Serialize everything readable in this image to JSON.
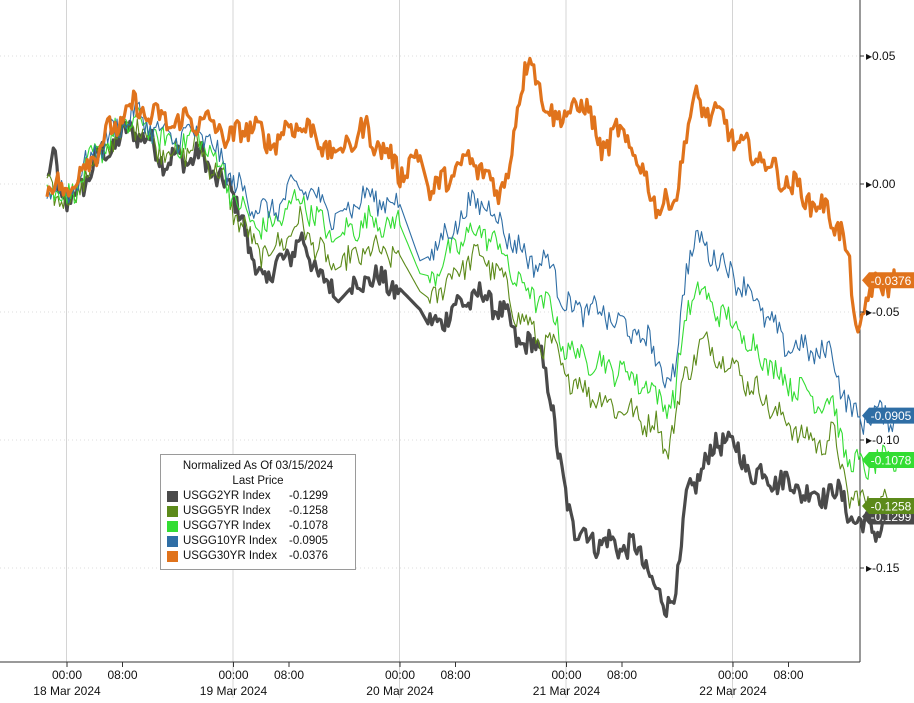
{
  "chart_data": {
    "type": "line",
    "legend": {
      "title": "Normalized As Of 03/15/2024",
      "subtitle": "Last Price",
      "placement": "bottom-left"
    },
    "x_axis": {
      "time_ticks": [
        "00:00",
        "08:00",
        "00:00",
        "08:00",
        "00:00",
        "08:00",
        "00:00",
        "08:00",
        "00:00",
        "08:00"
      ],
      "day_labels": [
        "18 Mar 2024",
        "19 Mar 2024",
        "20 Mar 2024",
        "21 Mar 2024",
        "22 Mar 2024"
      ]
    },
    "y_axis": {
      "ticks": [
        {
          "label": "0.05",
          "value": 0.05
        },
        {
          "label": "0.00",
          "value": 0.0
        },
        {
          "label": "-0.05",
          "value": -0.05
        },
        {
          "label": "-0.10",
          "value": -0.1
        },
        {
          "label": "-0.15",
          "value": -0.15
        }
      ],
      "ylim": [
        -0.19,
        0.073
      ],
      "side": "right"
    },
    "grid": true,
    "series": [
      {
        "name": "USGG2YR Index",
        "last": "-0.1299",
        "color": "#4a4a4a",
        "points": [
          [
            -0.12,
            0.0
          ],
          [
            -0.07,
            0.012
          ],
          [
            -0.04,
            -0.003
          ],
          [
            0.0,
            -0.009
          ],
          [
            0.2,
            0.011
          ],
          [
            0.4,
            0.022
          ],
          [
            0.6,
            0.009
          ],
          [
            0.8,
            0.011
          ],
          [
            1.0,
            -0.005
          ],
          [
            1.05,
            -0.01
          ],
          [
            1.1,
            -0.03
          ],
          [
            1.2,
            -0.037
          ],
          [
            1.4,
            -0.022
          ],
          [
            1.6,
            -0.044
          ],
          [
            1.63,
            -0.046
          ],
          [
            1.7,
            -0.041
          ],
          [
            1.8,
            -0.036
          ],
          [
            2.0,
            -0.041
          ],
          [
            2.12,
            -0.049
          ],
          [
            2.18,
            -0.056
          ],
          [
            2.4,
            -0.045
          ],
          [
            2.5,
            -0.044
          ],
          [
            2.58,
            -0.047
          ],
          [
            2.7,
            -0.06
          ],
          [
            2.85,
            -0.066
          ],
          [
            2.9,
            -0.08
          ],
          [
            2.95,
            -0.108
          ],
          [
            3.05,
            -0.135
          ],
          [
            3.2,
            -0.14
          ],
          [
            3.4,
            -0.142
          ],
          [
            3.5,
            -0.151
          ],
          [
            3.55,
            -0.162
          ],
          [
            3.6,
            -0.166
          ],
          [
            3.68,
            -0.15
          ],
          [
            3.72,
            -0.124
          ],
          [
            3.8,
            -0.112
          ],
          [
            3.95,
            -0.098
          ],
          [
            4.1,
            -0.112
          ],
          [
            4.3,
            -0.116
          ],
          [
            4.5,
            -0.122
          ],
          [
            4.6,
            -0.119
          ],
          [
            4.7,
            -0.128
          ],
          [
            4.78,
            -0.134
          ],
          [
            4.88,
            -0.134
          ],
          [
            5.0,
            -0.1299
          ]
        ]
      },
      {
        "name": "USGG5YR Index",
        "last": "-0.1258",
        "color": "#5c8a1a",
        "points": [
          [
            -0.12,
            0.0
          ],
          [
            0.0,
            -0.008
          ],
          [
            0.2,
            0.012
          ],
          [
            0.4,
            0.024
          ],
          [
            0.6,
            0.012
          ],
          [
            0.8,
            0.014
          ],
          [
            0.95,
            0.0
          ],
          [
            1.0,
            -0.01
          ],
          [
            1.1,
            -0.022
          ],
          [
            1.2,
            -0.028
          ],
          [
            1.4,
            -0.015
          ],
          [
            1.6,
            -0.034
          ],
          [
            1.8,
            -0.026
          ],
          [
            2.0,
            -0.028
          ],
          [
            2.12,
            -0.042
          ],
          [
            2.18,
            -0.045
          ],
          [
            2.4,
            -0.03
          ],
          [
            2.5,
            -0.028
          ],
          [
            2.6,
            -0.036
          ],
          [
            2.7,
            -0.05
          ],
          [
            2.85,
            -0.062
          ],
          [
            2.9,
            -0.062
          ],
          [
            3.0,
            -0.075
          ],
          [
            3.2,
            -0.084
          ],
          [
            3.4,
            -0.09
          ],
          [
            3.55,
            -0.095
          ],
          [
            3.6,
            -0.105
          ],
          [
            3.7,
            -0.078
          ],
          [
            3.8,
            -0.062
          ],
          [
            3.95,
            -0.068
          ],
          [
            4.1,
            -0.078
          ],
          [
            4.3,
            -0.092
          ],
          [
            4.5,
            -0.102
          ],
          [
            4.6,
            -0.098
          ],
          [
            4.7,
            -0.122
          ],
          [
            4.8,
            -0.125
          ],
          [
            5.0,
            -0.1258
          ]
        ]
      },
      {
        "name": "USGG7YR Index",
        "last": "-0.1078",
        "color": "#33dd33",
        "points": [
          [
            -0.12,
            0.0
          ],
          [
            0.0,
            -0.006
          ],
          [
            0.2,
            0.014
          ],
          [
            0.4,
            0.026
          ],
          [
            0.6,
            0.016
          ],
          [
            0.8,
            0.018
          ],
          [
            0.95,
            0.004
          ],
          [
            1.0,
            -0.006
          ],
          [
            1.1,
            -0.014
          ],
          [
            1.2,
            -0.018
          ],
          [
            1.4,
            -0.005
          ],
          [
            1.6,
            -0.022
          ],
          [
            1.8,
            -0.014
          ],
          [
            2.0,
            -0.016
          ],
          [
            2.12,
            -0.035
          ],
          [
            2.18,
            -0.036
          ],
          [
            2.4,
            -0.02
          ],
          [
            2.5,
            -0.018
          ],
          [
            2.6,
            -0.025
          ],
          [
            2.7,
            -0.038
          ],
          [
            2.85,
            -0.046
          ],
          [
            2.9,
            -0.048
          ],
          [
            3.0,
            -0.065
          ],
          [
            3.2,
            -0.07
          ],
          [
            3.4,
            -0.075
          ],
          [
            3.5,
            -0.08
          ],
          [
            3.58,
            -0.085
          ],
          [
            3.65,
            -0.085
          ],
          [
            3.72,
            -0.048
          ],
          [
            3.8,
            -0.042
          ],
          [
            3.95,
            -0.052
          ],
          [
            4.1,
            -0.062
          ],
          [
            4.3,
            -0.076
          ],
          [
            4.5,
            -0.084
          ],
          [
            4.6,
            -0.086
          ],
          [
            4.7,
            -0.11
          ],
          [
            4.8,
            -0.11
          ],
          [
            5.0,
            -0.1078
          ]
        ]
      },
      {
        "name": "USGG10YR Index",
        "last": "-0.0905",
        "color": "#2f6ea5",
        "points": [
          [
            -0.12,
            0.0
          ],
          [
            0.0,
            -0.004
          ],
          [
            0.2,
            0.015
          ],
          [
            0.4,
            0.028
          ],
          [
            0.6,
            0.018
          ],
          [
            0.8,
            0.02
          ],
          [
            0.95,
            0.008
          ],
          [
            1.0,
            0.0
          ],
          [
            1.1,
            -0.006
          ],
          [
            1.2,
            -0.012
          ],
          [
            1.4,
            0.0
          ],
          [
            1.6,
            -0.012
          ],
          [
            1.8,
            -0.005
          ],
          [
            2.0,
            -0.008
          ],
          [
            2.12,
            -0.03
          ],
          [
            2.18,
            -0.028
          ],
          [
            2.4,
            -0.01
          ],
          [
            2.5,
            -0.006
          ],
          [
            2.6,
            -0.015
          ],
          [
            2.7,
            -0.025
          ],
          [
            2.85,
            -0.032
          ],
          [
            2.9,
            -0.03
          ],
          [
            3.0,
            -0.048
          ],
          [
            3.2,
            -0.05
          ],
          [
            3.4,
            -0.058
          ],
          [
            3.5,
            -0.062
          ],
          [
            3.58,
            -0.075
          ],
          [
            3.65,
            -0.075
          ],
          [
            3.72,
            -0.03
          ],
          [
            3.8,
            -0.022
          ],
          [
            3.95,
            -0.032
          ],
          [
            4.1,
            -0.042
          ],
          [
            4.3,
            -0.062
          ],
          [
            4.5,
            -0.066
          ],
          [
            4.6,
            -0.066
          ],
          [
            4.68,
            -0.086
          ],
          [
            4.75,
            -0.092
          ],
          [
            4.85,
            -0.09
          ],
          [
            5.0,
            -0.0905
          ]
        ]
      },
      {
        "name": "USGG30YR Index",
        "last": "-0.0376",
        "color": "#e0731c",
        "points": [
          [
            -0.12,
            0.0
          ],
          [
            0.0,
            -0.003
          ],
          [
            0.2,
            0.016
          ],
          [
            0.4,
            0.03
          ],
          [
            0.6,
            0.024
          ],
          [
            0.8,
            0.025
          ],
          [
            0.95,
            0.02
          ],
          [
            1.0,
            0.017
          ],
          [
            1.1,
            0.024
          ],
          [
            1.2,
            0.016
          ],
          [
            1.4,
            0.024
          ],
          [
            1.6,
            0.012
          ],
          [
            1.8,
            0.021
          ],
          [
            2.0,
            0.005
          ],
          [
            2.12,
            0.011
          ],
          [
            2.18,
            -0.004
          ],
          [
            2.4,
            0.009
          ],
          [
            2.5,
            0.006
          ],
          [
            2.58,
            -0.004
          ],
          [
            2.65,
            0.005
          ],
          [
            2.75,
            0.045
          ],
          [
            2.78,
            0.055
          ],
          [
            2.85,
            0.03
          ],
          [
            2.9,
            0.03
          ],
          [
            3.0,
            0.025
          ],
          [
            3.1,
            0.034
          ],
          [
            3.2,
            0.014
          ],
          [
            3.3,
            0.02
          ],
          [
            3.4,
            0.014
          ],
          [
            3.48,
            0.0
          ],
          [
            3.55,
            -0.008
          ],
          [
            3.65,
            -0.008
          ],
          [
            3.72,
            0.022
          ],
          [
            3.78,
            0.032
          ],
          [
            3.95,
            0.024
          ],
          [
            4.05,
            0.014
          ],
          [
            4.15,
            0.011
          ],
          [
            4.3,
            0.002
          ],
          [
            4.5,
            -0.008
          ],
          [
            4.6,
            -0.013
          ],
          [
            4.65,
            -0.018
          ],
          [
            4.7,
            -0.035
          ],
          [
            4.75,
            -0.06
          ],
          [
            4.8,
            -0.045
          ],
          [
            4.9,
            -0.038
          ],
          [
            5.0,
            -0.0376
          ]
        ]
      }
    ]
  }
}
